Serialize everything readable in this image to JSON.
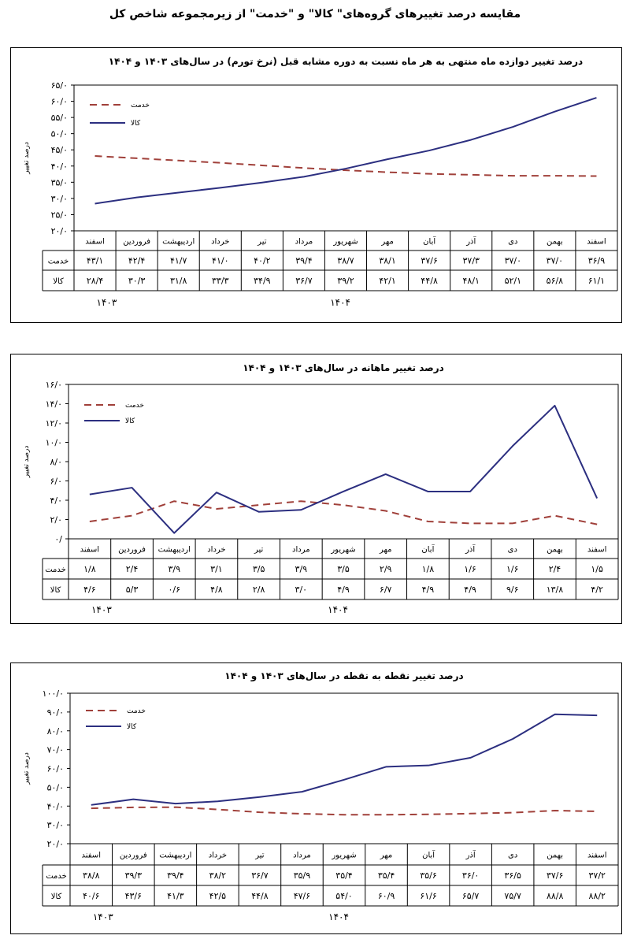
{
  "page_title": "مقایسه درصد تغییرهای گروه‌های\" کالا\" و \"خدمت\" از زیرمجموعه شاخص کل",
  "chart_data": [
    {
      "type": "line",
      "title": "درصد تغییر دوازده ماه منتهی به هر ماه نسبت به دوره مشابه قبل (نرخ تورم) در سال‌های ۱۴۰۳ و ۱۴۰۴",
      "ylabel": "درصد تغییر",
      "ylim": [
        20,
        65
      ],
      "yticks": [
        "۲۰/۰",
        "۲۵/۰",
        "۳۰/۰",
        "۳۵/۰",
        "۴۰/۰",
        "۴۵/۰",
        "۵۰/۰",
        "۵۵/۰",
        "۶۰/۰",
        "۶۵/۰"
      ],
      "ytick_values": [
        20,
        25,
        30,
        35,
        40,
        45,
        50,
        55,
        60,
        65
      ],
      "categories": [
        "اسفند",
        "فروردین",
        "اردیبهشت",
        "خرداد",
        "تیر",
        "مرداد",
        "شهریور",
        "مهر",
        "آبان",
        "آذر",
        "دی",
        "بهمن",
        "اسفند"
      ],
      "years": [
        "۱۴۰۳",
        "۱۴۰۴"
      ],
      "legend_position": "top-left",
      "series": [
        {
          "name": "خدمت",
          "color": "#a0403a",
          "dash": true,
          "values": [
            43.1,
            42.4,
            41.7,
            41.0,
            40.2,
            39.4,
            38.7,
            38.1,
            37.6,
            37.3,
            37.0,
            37.0,
            36.9
          ],
          "labels": [
            "۴۳/۱",
            "۴۲/۴",
            "۴۱/۷",
            "۴۱/۰",
            "۴۰/۲",
            "۳۹/۴",
            "۳۸/۷",
            "۳۸/۱",
            "۳۷/۶",
            "۳۷/۳",
            "۳۷/۰",
            "۳۷/۰",
            "۳۶/۹"
          ]
        },
        {
          "name": "کالا",
          "color": "#2c2f80",
          "dash": false,
          "values": [
            28.4,
            30.3,
            31.8,
            33.3,
            34.9,
            36.7,
            39.2,
            42.1,
            44.8,
            48.1,
            52.1,
            56.8,
            61.1
          ],
          "labels": [
            "۲۸/۴",
            "۳۰/۳",
            "۳۱/۸",
            "۳۳/۳",
            "۳۴/۹",
            "۳۶/۷",
            "۳۹/۲",
            "۴۲/۱",
            "۴۴/۸",
            "۴۸/۱",
            "۵۲/۱",
            "۵۶/۸",
            "۶۱/۱"
          ]
        }
      ]
    },
    {
      "type": "line",
      "title": "درصد تغییر ماهانه در سال‌های ۱۴۰۳ و ۱۴۰۴",
      "ylabel": "درصد تغییر",
      "ylim": [
        0,
        16
      ],
      "yticks": [
        "۰/",
        "۲/۰",
        "۴/۰",
        "۶/۰",
        "۸/۰",
        "۱۰/۰",
        "۱۲/۰",
        "۱۴/۰",
        "۱۶/۰"
      ],
      "ytick_values": [
        0,
        2,
        4,
        6,
        8,
        10,
        12,
        14,
        16
      ],
      "categories": [
        "اسفند",
        "فروردین",
        "اردیبهشت",
        "خرداد",
        "تیر",
        "مرداد",
        "شهریور",
        "مهر",
        "آبان",
        "آذر",
        "دی",
        "بهمن",
        "اسفند"
      ],
      "years": [
        "۱۴۰۳",
        "۱۴۰۴"
      ],
      "legend_position": "top-left",
      "series": [
        {
          "name": "خدمت",
          "color": "#a0403a",
          "dash": true,
          "values": [
            1.8,
            2.4,
            3.9,
            3.1,
            3.5,
            3.9,
            3.5,
            2.9,
            1.8,
            1.6,
            1.6,
            2.4,
            1.5
          ],
          "labels": [
            "۱/۸",
            "۲/۴",
            "۳/۹",
            "۳/۱",
            "۳/۵",
            "۳/۹",
            "۳/۵",
            "۲/۹",
            "۱/۸",
            "۱/۶",
            "۱/۶",
            "۲/۴",
            "۱/۵"
          ]
        },
        {
          "name": "کالا",
          "color": "#2c2f80",
          "dash": false,
          "values": [
            4.6,
            5.3,
            0.6,
            4.8,
            2.8,
            3.0,
            4.9,
            6.7,
            4.9,
            4.9,
            9.6,
            13.8,
            4.2
          ],
          "labels": [
            "۴/۶",
            "۵/۳",
            "۰/۶",
            "۴/۸",
            "۲/۸",
            "۳/۰",
            "۴/۹",
            "۶/۷",
            "۴/۹",
            "۴/۹",
            "۹/۶",
            "۱۳/۸",
            "۴/۲"
          ]
        }
      ]
    },
    {
      "type": "line",
      "title": "درصد تغییر نقطه به نقطه در سال‌های ۱۴۰۳ و ۱۴۰۴",
      "ylabel": "درصد تغییر",
      "ylim": [
        20,
        100
      ],
      "yticks": [
        "۲۰/۰",
        "۳۰/۰",
        "۴۰/۰",
        "۵۰/۰",
        "۶۰/۰",
        "۷۰/۰",
        "۸۰/۰",
        "۹۰/۰",
        "۱۰۰/۰"
      ],
      "ytick_values": [
        20,
        30,
        40,
        50,
        60,
        70,
        80,
        90,
        100
      ],
      "categories": [
        "اسفند",
        "فروردین",
        "اردیبهشت",
        "خرداد",
        "تیر",
        "مرداد",
        "شهریور",
        "مهر",
        "آبان",
        "آذر",
        "دی",
        "بهمن",
        "اسفند"
      ],
      "years": [
        "۱۴۰۳",
        "۱۴۰۴"
      ],
      "legend_position": "top-left",
      "series": [
        {
          "name": "خدمت",
          "color": "#a0403a",
          "dash": true,
          "values": [
            38.8,
            39.3,
            39.4,
            38.2,
            36.7,
            35.9,
            35.4,
            35.4,
            35.6,
            36.0,
            36.5,
            37.6,
            37.2
          ],
          "labels": [
            "۳۸/۸",
            "۳۹/۳",
            "۳۹/۴",
            "۳۸/۲",
            "۳۶/۷",
            "۳۵/۹",
            "۳۵/۴",
            "۳۵/۴",
            "۳۵/۶",
            "۳۶/۰",
            "۳۶/۵",
            "۳۷/۶",
            "۳۷/۲"
          ]
        },
        {
          "name": "کالا",
          "color": "#2c2f80",
          "dash": false,
          "values": [
            40.6,
            43.6,
            41.3,
            42.5,
            44.8,
            47.6,
            54.0,
            60.9,
            61.6,
            65.7,
            75.7,
            88.8,
            88.2
          ],
          "labels": [
            "۴۰/۶",
            "۴۳/۶",
            "۴۱/۳",
            "۴۲/۵",
            "۴۴/۸",
            "۴۷/۶",
            "۵۴/۰",
            "۶۰/۹",
            "۶۱/۶",
            "۶۵/۷",
            "۷۵/۷",
            "۸۸/۸",
            "۸۸/۲"
          ]
        }
      ]
    }
  ]
}
